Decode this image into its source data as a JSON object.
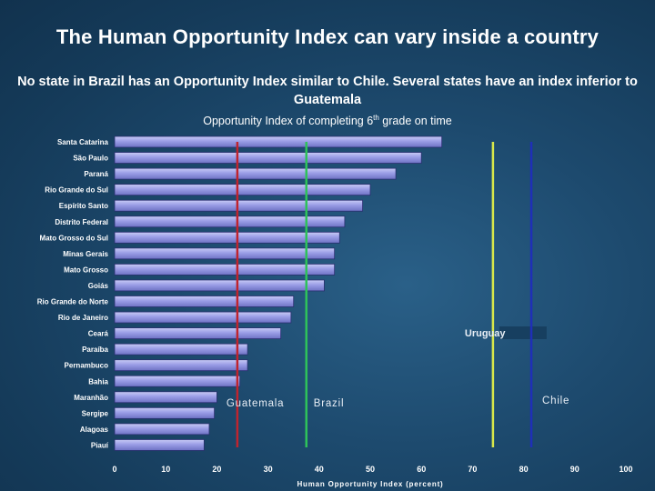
{
  "title": "The Human Opportunity Index can vary inside a country",
  "subtitle": "No state in Brazil has an Opportunity Index similar to Chile.  Several states have an index inferior to Guatemala",
  "chart_title_main": "Opportunity Index of completing 6",
  "chart_title_sup": "th",
  "chart_title_end": " grade on time",
  "chart_data": {
    "type": "bar",
    "orientation": "horizontal",
    "xlabel": "Human Opportunity Index (percent)",
    "xlim": [
      0,
      100
    ],
    "xticks": [
      0,
      10,
      20,
      30,
      40,
      50,
      60,
      70,
      80,
      90,
      100
    ],
    "categories": [
      "Santa Catarina",
      "São Paulo",
      "Paraná",
      "Rio Grande do Sul",
      "Espírito Santo",
      "Distrito Federal",
      "Mato Grosso do Sul",
      "Minas Gerais",
      "Mato Grosso",
      "Goiás",
      "Rio Grande do Norte",
      "Rio de Janeiro",
      "Ceará",
      "Paraíba",
      "Pernambuco",
      "Bahia",
      "Maranhão",
      "Sergipe",
      "Alagoas",
      "Piauí"
    ],
    "values": [
      64,
      60,
      55,
      50,
      48.5,
      45,
      44,
      43,
      43,
      41,
      35,
      34.5,
      32.5,
      26,
      26,
      24.5,
      20,
      19.5,
      18.5,
      17.5
    ],
    "bar_color": "#9a9de6",
    "reference_lines": [
      {
        "label": "Guatemala",
        "value": 24,
        "color": "#c0242e"
      },
      {
        "label": "Brazil",
        "value": 37.5,
        "color": "#2ec25a"
      },
      {
        "label": "Uruguay",
        "value": 74,
        "color": "#d9e84a"
      },
      {
        "label": "Chile",
        "value": 81.5,
        "color": "#1f2fb8"
      }
    ]
  }
}
